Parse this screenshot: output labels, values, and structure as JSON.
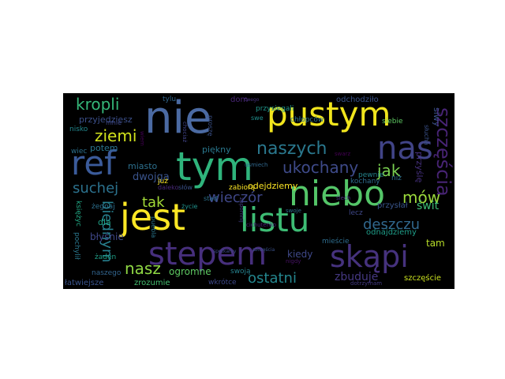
{
  "wordcloud": {
    "words": [
      {
        "text": "nie",
        "color": "#4b6aa2"
      },
      {
        "text": "pustym",
        "color": "#f1e51d"
      },
      {
        "text": "nas",
        "color": "#414487"
      },
      {
        "text": "ref",
        "color": "#3b5b9a"
      },
      {
        "text": "tym",
        "color": "#2fb47c"
      },
      {
        "text": "jest",
        "color": "#fde725"
      },
      {
        "text": "niebo",
        "color": "#54c568"
      },
      {
        "text": "listu",
        "color": "#3dbc74"
      },
      {
        "text": "stepem",
        "color": "#472f7d"
      },
      {
        "text": "skąpi",
        "color": "#46327e"
      },
      {
        "text": "naszych",
        "color": "#2a788e"
      },
      {
        "text": "szczęścia",
        "color": "#482475"
      },
      {
        "text": "kropli",
        "color": "#35b779"
      },
      {
        "text": "ziemi",
        "color": "#d0e11c"
      },
      {
        "text": "ukochany",
        "color": "#3e4a89"
      },
      {
        "text": "jak",
        "color": "#7ad151"
      },
      {
        "text": "suchej",
        "color": "#2c728e"
      },
      {
        "text": "mów",
        "color": "#9bd93c"
      },
      {
        "text": "wieczór",
        "color": "#3f4788"
      },
      {
        "text": "tak",
        "color": "#a2da37"
      },
      {
        "text": "deszczu",
        "color": "#31688e"
      },
      {
        "text": "biednym",
        "color": "#277f8e"
      },
      {
        "text": "dwojga",
        "color": "#3a548c"
      },
      {
        "text": "nasz",
        "color": "#8fd744"
      },
      {
        "text": "ostatni",
        "color": "#24868e"
      },
      {
        "text": "zbuduje",
        "color": "#453882"
      },
      {
        "text": "odejdziemy",
        "color": "#fde725"
      },
      {
        "text": "kiedy",
        "color": "#3f4889"
      },
      {
        "text": "przyjedziesz",
        "color": "#3c508b"
      },
      {
        "text": "potem",
        "color": "#2a768e"
      },
      {
        "text": "piękny",
        "color": "#2a788e"
      },
      {
        "text": "miasto",
        "color": "#2d708e"
      },
      {
        "text": "dla",
        "color": "#20a386"
      },
      {
        "text": "przyślę",
        "color": "#46307e"
      },
      {
        "text": "siwy",
        "color": "#3b528b"
      },
      {
        "text": "dom",
        "color": "#482576"
      },
      {
        "text": "odchodziło",
        "color": "#3a538b"
      },
      {
        "text": "przysiegali",
        "color": "#1f968b"
      },
      {
        "text": "tylu",
        "color": "#31678e"
      },
      {
        "text": "nisko",
        "color": "#23888e"
      },
      {
        "text": "chłopców",
        "color": "#2c718e"
      },
      {
        "text": "siebie",
        "color": "#5ec962"
      },
      {
        "text": "słucha",
        "color": "#3b528b"
      },
      {
        "text": "wiec",
        "color": "#2c718e"
      },
      {
        "text": "pewnie",
        "color": "#25858e"
      },
      {
        "text": "kochany",
        "color": "#2f6c8e"
      },
      {
        "text": "niż",
        "color": "#2d708e"
      },
      {
        "text": "świt",
        "color": "#3dbc74"
      },
      {
        "text": "przysłał",
        "color": "#39558c"
      },
      {
        "text": "lecz",
        "color": "#3f4889"
      },
      {
        "text": "tam",
        "color": "#b8de29"
      },
      {
        "text": "odnajdziemy",
        "color": "#1f9e89"
      },
      {
        "text": "mieście",
        "color": "#2e6d8e"
      },
      {
        "text": "nigdy",
        "color": "#471365"
      },
      {
        "text": "szczęście",
        "color": "#cae11f"
      },
      {
        "text": "dotrzymam",
        "color": "#443b84"
      },
      {
        "text": "ogromne",
        "color": "#5ec962"
      },
      {
        "text": "swoją",
        "color": "#26828e"
      },
      {
        "text": "wkrótce",
        "color": "#3e4989"
      },
      {
        "text": "zrozumie",
        "color": "#44bf70"
      },
      {
        "text": "łatwiejsze",
        "color": "#3a548c"
      },
      {
        "text": "naszego",
        "color": "#32658e"
      },
      {
        "text": "błyśnie",
        "color": "#3f4788"
      },
      {
        "text": "pochylił",
        "color": "#2a788e"
      },
      {
        "text": "żaden",
        "color": "#1fa088"
      },
      {
        "text": "księżyc",
        "color": "#22a884"
      },
      {
        "text": "żegnaj",
        "color": "#2d708e"
      },
      {
        "text": "już",
        "color": "#fde725"
      },
      {
        "text": "daleko",
        "color": "#482878"
      },
      {
        "text": "słów",
        "color": "#3b528b"
      },
      {
        "text": "staď",
        "color": "#2c728e"
      },
      {
        "text": "zabiorą",
        "color": "#fde725"
      },
      {
        "text": "zapomnij",
        "color": "#433d84"
      },
      {
        "text": "życie",
        "color": "#20928c"
      },
      {
        "text": "puebla",
        "color": "#2a768e"
      },
      {
        "text": "proszę",
        "color": "#3b528b"
      },
      {
        "text": "swe",
        "color": "#21908d"
      },
      {
        "text": "mnie",
        "color": "#3e4989"
      },
      {
        "text": "chociaż",
        "color": "#414487"
      },
      {
        "text": "twego",
        "color": "#46327e"
      },
      {
        "text": "usmiech",
        "color": "#31688e"
      },
      {
        "text": "wiem",
        "color": "#440154"
      },
      {
        "text": "swarz",
        "color": "#440154"
      },
      {
        "text": "cichuteńko",
        "color": "#482475"
      },
      {
        "text": "spotkamy",
        "color": "#3e4989"
      },
      {
        "text": "szczęścia",
        "color": "#3b528b"
      },
      {
        "text": "ślech",
        "color": "#472f7d"
      },
      {
        "text": "swoje",
        "color": "#2c718e"
      }
    ]
  }
}
